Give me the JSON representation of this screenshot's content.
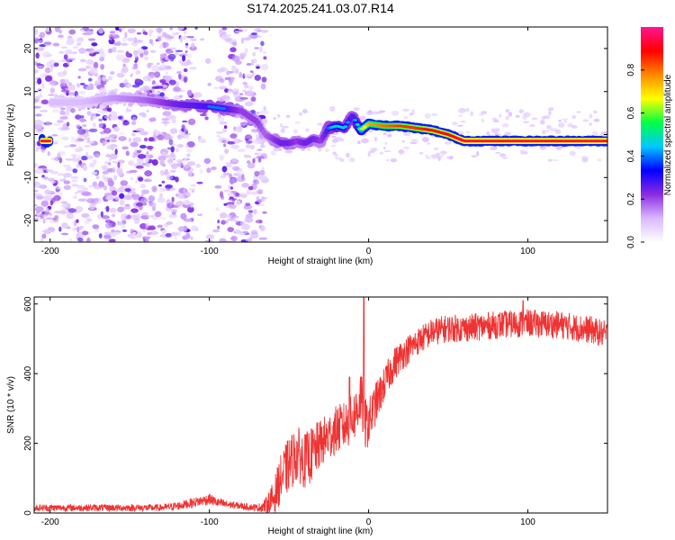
{
  "chart_data": [
    {
      "type": "heatmap",
      "title": "S174.2025.241.03.07.R14",
      "xlabel": "Height of straight line (km)",
      "ylabel": "Frequency (Hz)",
      "xlim": [
        -210,
        150
      ],
      "ylim": [
        -25,
        25
      ],
      "xticks": [
        -200,
        -100,
        0,
        100
      ],
      "yticks": [
        20,
        10,
        0,
        -10,
        -20
      ],
      "colorbar": {
        "label": "Normalized spectral amplitude",
        "range": [
          0,
          1
        ],
        "ticks": [
          "0.0",
          "0.2",
          "0.4",
          "0.6",
          "0.8"
        ],
        "tick_values": [
          0,
          0.2,
          0.4,
          0.6,
          0.8
        ],
        "colors": [
          "#ffffff",
          "#d9b8ff",
          "#8a2be2",
          "#0000ff",
          "#00c8ff",
          "#00ff44",
          "#ffff00",
          "#ff8800",
          "#ff0000",
          "#ff1493"
        ]
      },
      "ridge": {
        "x": [
          -200,
          -180,
          -160,
          -140,
          -120,
          -100,
          -90,
          -80,
          -70,
          -65,
          -60,
          -55,
          -50,
          -45,
          -40,
          -35,
          -30,
          -25,
          -20,
          -15,
          -12,
          -10,
          -8,
          -5,
          0,
          10,
          20,
          30,
          40,
          50,
          60,
          80,
          100,
          120,
          150
        ],
        "y": [
          7.5,
          7.5,
          8.5,
          8,
          7,
          6.5,
          6,
          5.5,
          3,
          0,
          -1,
          -2,
          -2,
          -1.5,
          -2,
          -1,
          -1.5,
          1.5,
          2,
          1.5,
          3.5,
          4.5,
          3,
          1,
          2.5,
          2,
          2,
          1.5,
          1,
          0,
          -1.5,
          -1.5,
          -1.5,
          -1.5,
          -1.5
        ],
        "amplitude": [
          0.15,
          0.15,
          0.2,
          0.25,
          0.35,
          0.4,
          0.4,
          0.3,
          0.3,
          0.25,
          0.3,
          0.35,
          0.35,
          0.3,
          0.35,
          0.35,
          0.3,
          0.4,
          0.5,
          0.45,
          0.4,
          0.35,
          0.45,
          0.6,
          0.75,
          0.8,
          0.85,
          0.85,
          0.9,
          0.9,
          0.95,
          0.95,
          0.95,
          0.95,
          0.95
        ]
      }
    },
    {
      "type": "line",
      "xlabel": "Height of straight line (km)",
      "ylabel": "SNR (10 * v/v)",
      "xlim": [
        -210,
        150
      ],
      "ylim": [
        0,
        620
      ],
      "xticks": [
        -200,
        -100,
        0,
        100
      ],
      "yticks": [
        0,
        200,
        400,
        600
      ],
      "line_color": "#ee3333",
      "series": [
        {
          "name": "SNR",
          "x": [
            -210,
            -190,
            -170,
            -150,
            -130,
            -120,
            -110,
            -100,
            -95,
            -90,
            -80,
            -70,
            -65,
            -60,
            -55,
            -50,
            -45,
            -40,
            -35,
            -30,
            -25,
            -20,
            -15,
            -10,
            -7,
            -5,
            -3,
            0,
            5,
            10,
            15,
            20,
            30,
            40,
            50,
            60,
            80,
            100,
            120,
            140,
            150
          ],
          "y": [
            15,
            15,
            15,
            15,
            15,
            20,
            30,
            40,
            30,
            25,
            20,
            15,
            20,
            40,
            100,
            140,
            170,
            150,
            170,
            200,
            220,
            240,
            250,
            270,
            300,
            340,
            250,
            260,
            320,
            370,
            420,
            450,
            490,
            520,
            530,
            530,
            540,
            545,
            540,
            525,
            510
          ],
          "noise": [
            10,
            10,
            10,
            10,
            10,
            12,
            14,
            16,
            14,
            12,
            10,
            10,
            20,
            50,
            70,
            80,
            80,
            80,
            80,
            70,
            70,
            70,
            70,
            70,
            80,
            90,
            80,
            70,
            60,
            50,
            50,
            45,
            40,
            40,
            40,
            40,
            40,
            40,
            40,
            40,
            40
          ]
        }
      ],
      "spikes": [
        {
          "x": -3,
          "y": 620
        },
        {
          "x": -12,
          "y": 390
        },
        {
          "x": 97,
          "y": 610
        }
      ]
    }
  ]
}
